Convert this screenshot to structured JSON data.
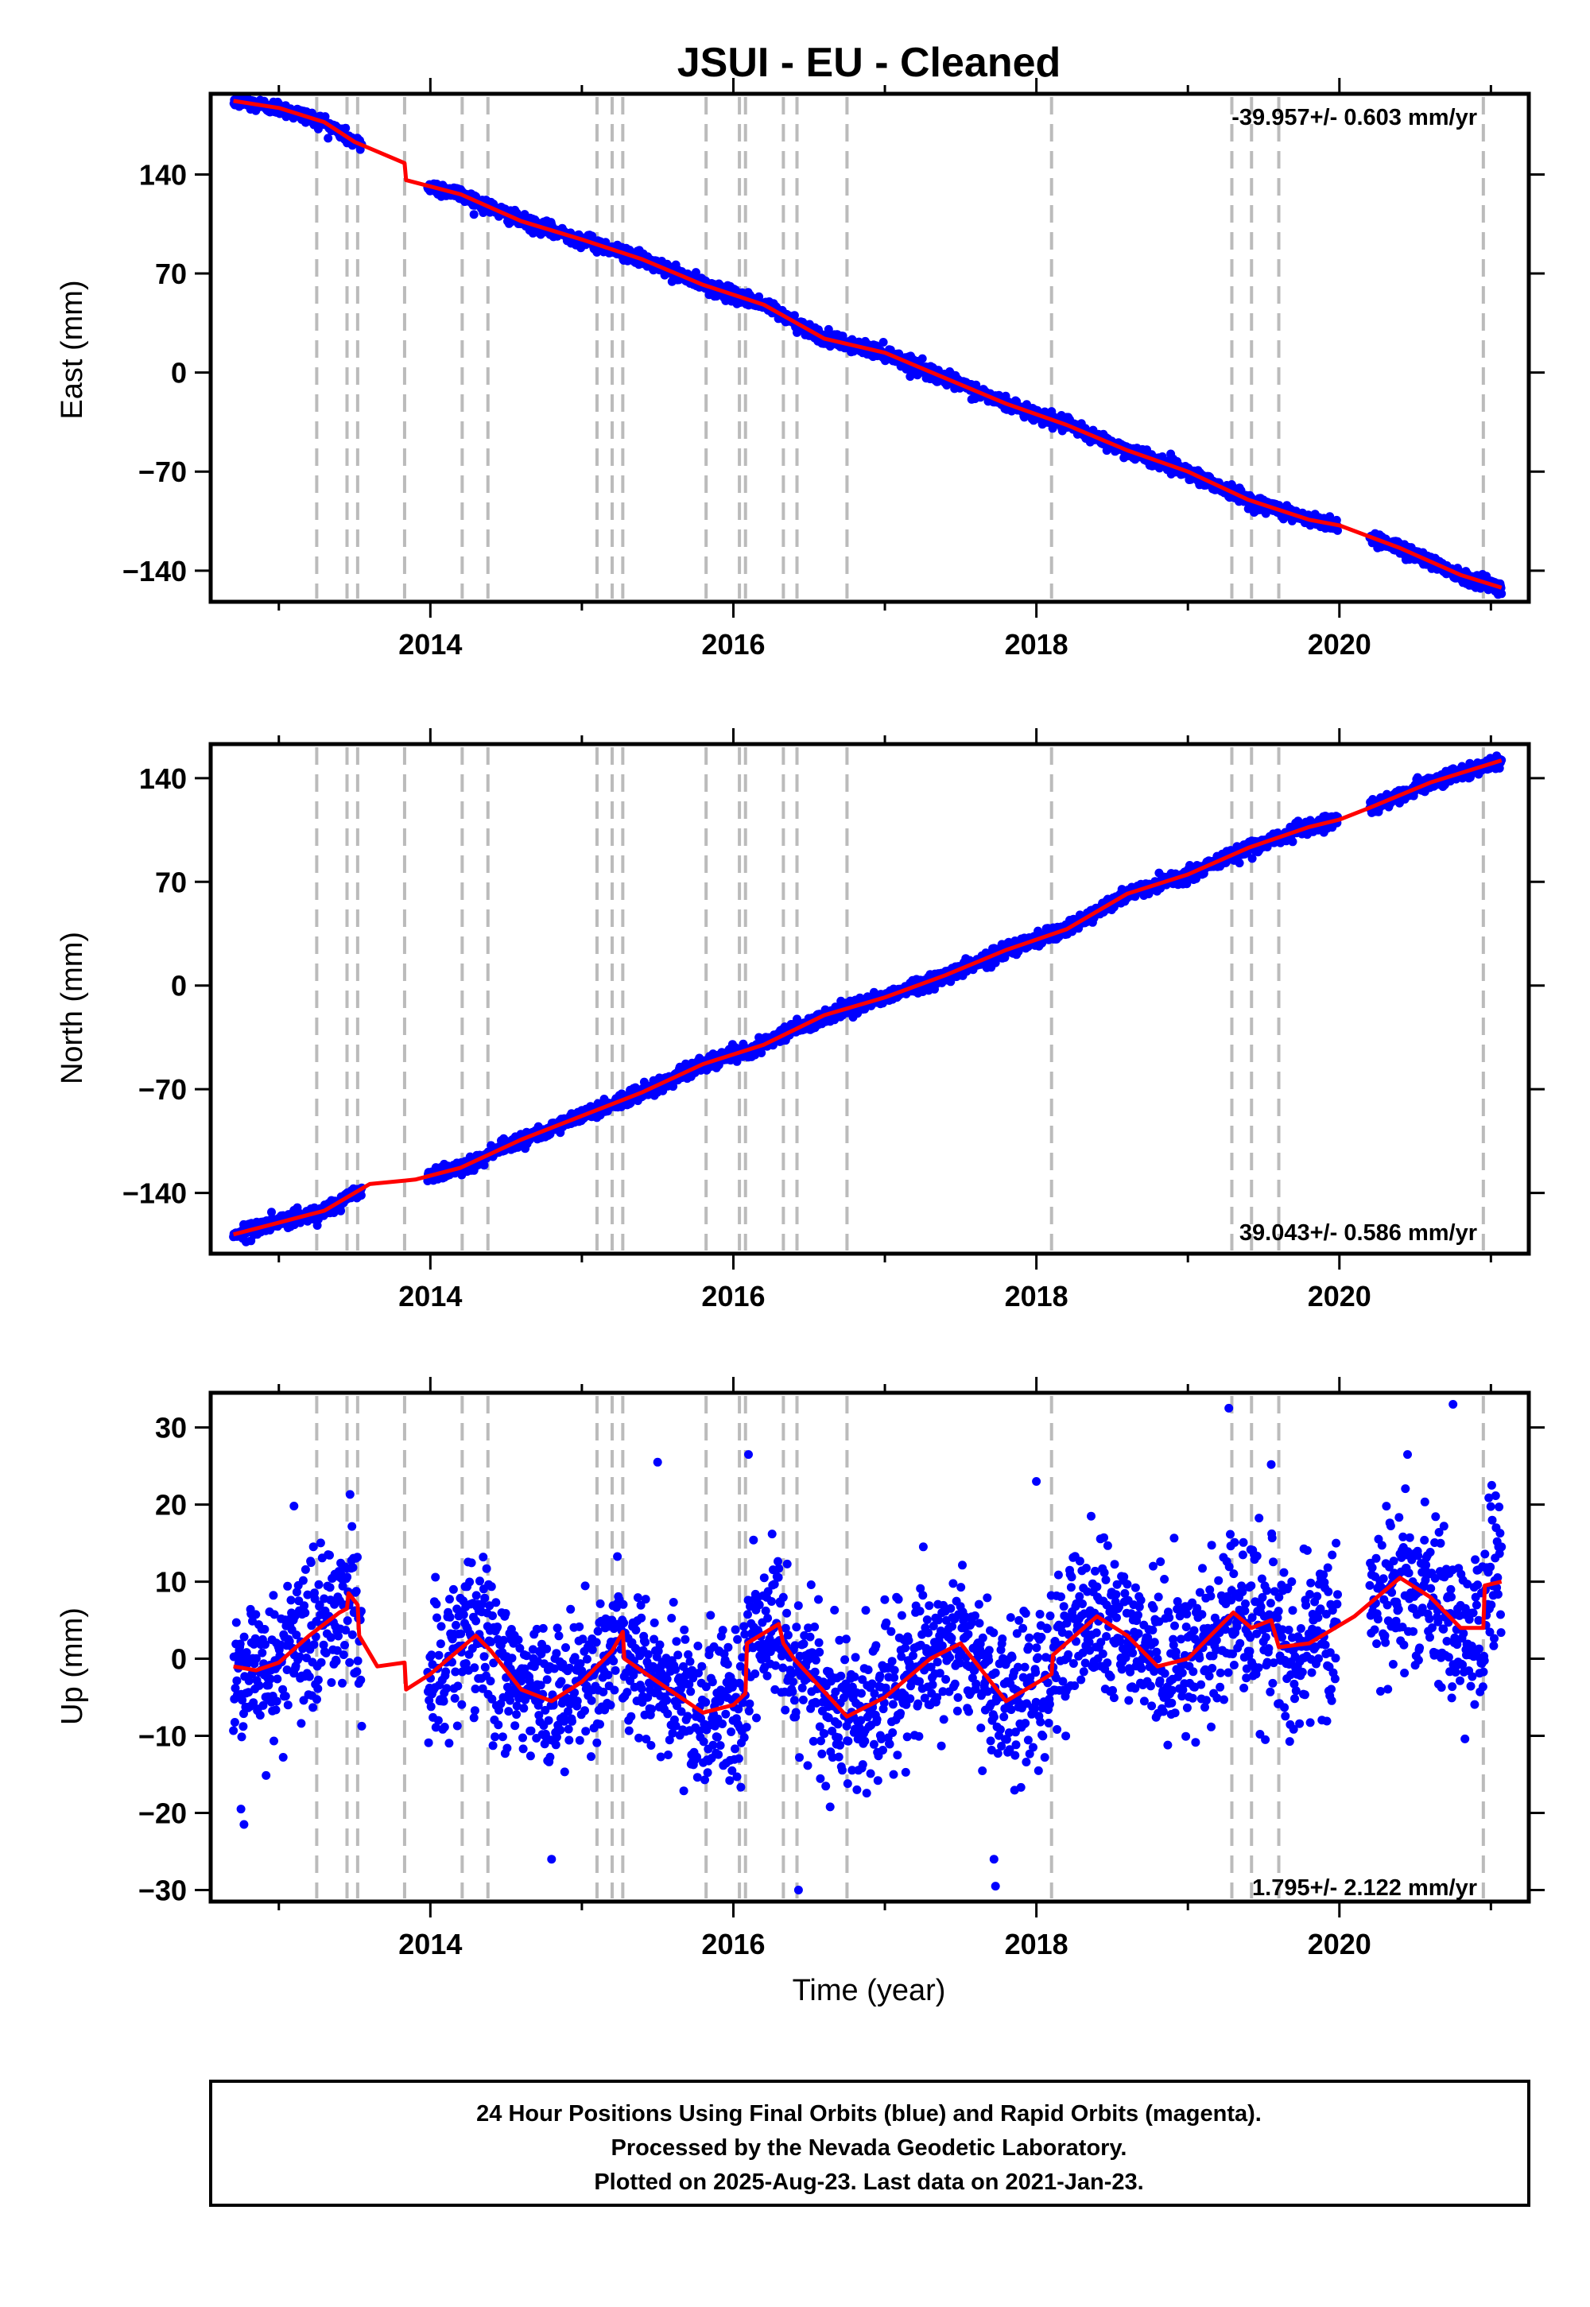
{
  "title": "JSUI  - EU - Cleaned",
  "xlabel": "Time (year)",
  "footer": {
    "lines": [
      "24 Hour Positions Using Final Orbits (blue) and Rapid Orbits (magenta).",
      "Processed by the Nevada Geodetic Laboratory.",
      "Plotted on 2025-Aug-23. Last data on 2021-Jan-23."
    ]
  },
  "colors": {
    "points": "#0000ff",
    "fit": "#ff0000",
    "steps": "#bbbbbb",
    "frame": "#000000"
  },
  "chart_data": [
    {
      "type": "scatter",
      "panel": "east",
      "ylabel": "East (mm)",
      "rate_label": "-39.957+/- 0.603 mm/yr",
      "xlim": [
        2012.55,
        2021.25
      ],
      "ylim": [
        -162,
        197
      ],
      "xticks": [
        2014,
        2016,
        2018,
        2020
      ],
      "yticks": [
        140,
        70,
        0,
        -70,
        -140
      ],
      "ytick_labels": [
        "140",
        "70",
        "0",
        "−70",
        "−140"
      ],
      "steps": [
        2013.25,
        2013.45,
        2013.52,
        2013.83,
        2014.21,
        2014.38,
        2015.1,
        2015.2,
        2015.27,
        2015.82,
        2016.04,
        2016.08,
        2016.33,
        2016.42,
        2016.75,
        2018.1,
        2019.29,
        2019.42,
        2019.6,
        2020.95
      ],
      "fit": [
        [
          2012.7,
          192
        ],
        [
          2013.0,
          187
        ],
        [
          2013.3,
          177
        ],
        [
          2013.5,
          163
        ],
        [
          2013.83,
          148
        ],
        [
          2013.84,
          136
        ],
        [
          2014.2,
          126
        ],
        [
          2014.6,
          107
        ],
        [
          2015.0,
          94
        ],
        [
          2015.4,
          80
        ],
        [
          2015.8,
          62
        ],
        [
          2016.2,
          48
        ],
        [
          2016.6,
          24
        ],
        [
          2017.0,
          14
        ],
        [
          2017.4,
          -4
        ],
        [
          2017.8,
          -22
        ],
        [
          2018.2,
          -37
        ],
        [
          2018.6,
          -55
        ],
        [
          2019.0,
          -70
        ],
        [
          2019.4,
          -90
        ],
        [
          2019.8,
          -104
        ],
        [
          2020.0,
          -108
        ],
        [
          2020.4,
          -124
        ],
        [
          2020.8,
          -143
        ],
        [
          2021.07,
          -152
        ]
      ],
      "noise": 2.4
    },
    {
      "type": "scatter",
      "panel": "north",
      "ylabel": "North (mm)",
      "rate_label": "39.043+/- 0.586 mm/yr",
      "xlim": [
        2012.55,
        2021.25
      ],
      "ylim": [
        -181,
        163
      ],
      "xticks": [
        2014,
        2016,
        2018,
        2020
      ],
      "yticks": [
        140,
        70,
        0,
        -70,
        -140
      ],
      "ytick_labels": [
        "140",
        "70",
        "0",
        "−70",
        "−140"
      ],
      "steps": [
        2013.25,
        2013.45,
        2013.52,
        2013.83,
        2014.21,
        2014.38,
        2015.1,
        2015.2,
        2015.27,
        2015.82,
        2016.04,
        2016.08,
        2016.33,
        2016.42,
        2016.75,
        2018.1,
        2019.29,
        2019.42,
        2019.6,
        2020.95
      ],
      "fit": [
        [
          2012.7,
          -168
        ],
        [
          2013.0,
          -160
        ],
        [
          2013.3,
          -152
        ],
        [
          2013.6,
          -134
        ],
        [
          2013.9,
          -131
        ],
        [
          2014.2,
          -123
        ],
        [
          2014.6,
          -104
        ],
        [
          2015.0,
          -88
        ],
        [
          2015.4,
          -72
        ],
        [
          2015.8,
          -53
        ],
        [
          2016.2,
          -40
        ],
        [
          2016.6,
          -20
        ],
        [
          2017.0,
          -8
        ],
        [
          2017.4,
          7
        ],
        [
          2017.8,
          24
        ],
        [
          2018.2,
          38
        ],
        [
          2018.6,
          62
        ],
        [
          2019.0,
          75
        ],
        [
          2019.4,
          93
        ],
        [
          2019.8,
          107
        ],
        [
          2020.0,
          112
        ],
        [
          2020.2,
          120
        ],
        [
          2020.6,
          137
        ],
        [
          2021.07,
          152
        ]
      ],
      "noise": 2.4
    },
    {
      "type": "scatter",
      "panel": "up",
      "ylabel": "Up (mm)",
      "rate_label": "1.795+/- 2.122 mm/yr",
      "xlim": [
        2012.55,
        2021.25
      ],
      "ylim": [
        -31.5,
        34.5
      ],
      "xticks": [
        2014,
        2016,
        2018,
        2020
      ],
      "yticks": [
        30,
        20,
        10,
        0,
        -10,
        -20,
        -30
      ],
      "ytick_labels": [
        "30",
        "20",
        "10",
        "0",
        "−10",
        "−20",
        "−30"
      ],
      "steps": [
        2013.25,
        2013.45,
        2013.52,
        2013.83,
        2014.21,
        2014.38,
        2015.1,
        2015.2,
        2015.27,
        2015.82,
        2016.04,
        2016.08,
        2016.33,
        2016.42,
        2016.75,
        2018.1,
        2019.29,
        2019.42,
        2019.6,
        2020.95
      ],
      "fit": [
        [
          2012.7,
          -1
        ],
        [
          2012.85,
          -1.5
        ],
        [
          2013.0,
          -0.5
        ],
        [
          2013.2,
          3
        ],
        [
          2013.4,
          6
        ],
        [
          2013.45,
          6.5
        ],
        [
          2013.46,
          8.5
        ],
        [
          2013.52,
          7
        ],
        [
          2013.53,
          3
        ],
        [
          2013.65,
          -1
        ],
        [
          2013.83,
          -0.5
        ],
        [
          2013.84,
          -4
        ],
        [
          2014.0,
          -2
        ],
        [
          2014.3,
          3
        ],
        [
          2014.4,
          1
        ],
        [
          2014.6,
          -4
        ],
        [
          2014.8,
          -5.5
        ],
        [
          2015.0,
          -3
        ],
        [
          2015.2,
          1
        ],
        [
          2015.27,
          3.5
        ],
        [
          2015.28,
          0
        ],
        [
          2015.5,
          -3
        ],
        [
          2015.8,
          -7
        ],
        [
          2016.0,
          -6
        ],
        [
          2016.08,
          -4.5
        ],
        [
          2016.09,
          2
        ],
        [
          2016.3,
          4.5
        ],
        [
          2016.33,
          2
        ],
        [
          2016.4,
          0
        ],
        [
          2016.75,
          -7.5
        ],
        [
          2017.0,
          -5
        ],
        [
          2017.3,
          0
        ],
        [
          2017.5,
          2
        ],
        [
          2017.8,
          -5.5
        ],
        [
          2018.1,
          -2
        ],
        [
          2018.11,
          0.5
        ],
        [
          2018.4,
          5.5
        ],
        [
          2018.6,
          3
        ],
        [
          2018.8,
          -1
        ],
        [
          2019.0,
          0
        ],
        [
          2019.3,
          6
        ],
        [
          2019.42,
          4
        ],
        [
          2019.55,
          5
        ],
        [
          2019.6,
          1.5
        ],
        [
          2019.8,
          2
        ],
        [
          2020.1,
          5.5
        ],
        [
          2020.4,
          10.5
        ],
        [
          2020.6,
          8
        ],
        [
          2020.8,
          4
        ],
        [
          2020.95,
          4
        ],
        [
          2020.96,
          9.5
        ],
        [
          2021.07,
          10
        ]
      ],
      "noise": 5.0,
      "outliers": [
        [
          2019.27,
          32.5
        ],
        [
          2020.75,
          33
        ],
        [
          2016.1,
          26.5
        ],
        [
          2015.5,
          25.5
        ],
        [
          2013.1,
          19.8
        ],
        [
          2012.75,
          -19.5
        ],
        [
          2012.77,
          -21.5
        ],
        [
          2014.8,
          -26
        ],
        [
          2017.72,
          -26
        ],
        [
          2017.73,
          -29.5
        ],
        [
          2016.43,
          -30
        ],
        [
          2018.0,
          23
        ],
        [
          2019.55,
          25.2
        ],
        [
          2020.45,
          26.5
        ]
      ]
    }
  ]
}
